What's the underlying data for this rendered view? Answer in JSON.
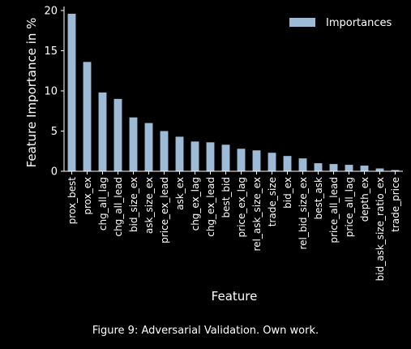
{
  "chart_data": {
    "type": "bar",
    "xlabel": "Feature",
    "ylabel": "Feature Importance in %",
    "ylim": [
      0,
      20.5
    ],
    "yticks": [
      0,
      5,
      10,
      15,
      20
    ],
    "legend": {
      "label": "Importances",
      "placement": "top-right"
    },
    "bar_color": "#9dbbd6",
    "categories": [
      "prox_best",
      "prox_ex",
      "chg_all_lag",
      "chg_all_lead",
      "bid_size_ex",
      "ask_size_ex",
      "price_ex_lead",
      "ask_ex",
      "chg_ex_lag",
      "chg_ex_lead",
      "best_bid",
      "price_ex_lag",
      "rel_ask_size_ex",
      "trade_size",
      "bid_ex",
      "rel_bid_size_ex",
      "best_ask",
      "price_all_lead",
      "price_all_lag",
      "depth_ex",
      "bid_ask_size_ratio_ex",
      "trade_price"
    ],
    "series": [
      {
        "name": "Importances",
        "values": [
          19.6,
          13.6,
          9.8,
          9.0,
          6.7,
          6.0,
          5.0,
          4.3,
          3.7,
          3.6,
          3.3,
          2.8,
          2.6,
          2.3,
          1.9,
          1.6,
          1.0,
          0.9,
          0.8,
          0.7,
          0.35,
          0.15
        ]
      }
    ]
  },
  "caption": "Figure 9: Adversarial Validation. Own work."
}
